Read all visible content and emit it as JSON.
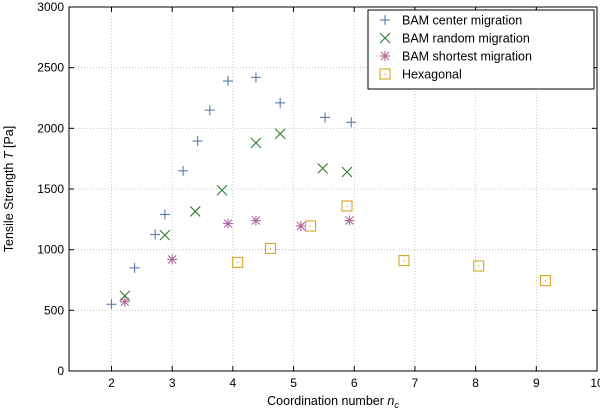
{
  "chart_data": {
    "type": "scatter",
    "title": "",
    "xlabel": "Coordination number",
    "xlabel_symbol": "n",
    "xlabel_subscript": "c",
    "ylabel": "Tensile Strength",
    "ylabel_symbol": "T",
    "ylabel_unit": "[Pa]",
    "xlim": [
      1.3,
      10
    ],
    "ylim": [
      0,
      3000
    ],
    "xticks": [
      2,
      3,
      4,
      5,
      6,
      7,
      8,
      9,
      10
    ],
    "yticks": [
      0,
      500,
      1000,
      1500,
      2000,
      2500,
      3000
    ],
    "grid": true,
    "legend_position": "top-right",
    "series": [
      {
        "name": "BAM center migration",
        "marker": "plus",
        "color": "#5a78b0",
        "points": [
          [
            2.0,
            550
          ],
          [
            2.38,
            850
          ],
          [
            2.72,
            1125
          ],
          [
            2.88,
            1290
          ],
          [
            3.18,
            1650
          ],
          [
            3.42,
            1895
          ],
          [
            3.62,
            2150
          ],
          [
            3.92,
            2390
          ],
          [
            4.38,
            2420
          ],
          [
            4.78,
            2210
          ],
          [
            5.52,
            2090
          ],
          [
            5.95,
            2050
          ]
        ]
      },
      {
        "name": "BAM random migration",
        "marker": "cross",
        "color": "#2e7d32",
        "points": [
          [
            2.22,
            620
          ],
          [
            2.88,
            1120
          ],
          [
            3.38,
            1315
          ],
          [
            3.82,
            1490
          ],
          [
            4.38,
            1880
          ],
          [
            4.78,
            1955
          ],
          [
            5.48,
            1670
          ],
          [
            5.88,
            1640
          ]
        ]
      },
      {
        "name": "BAM shortest migration",
        "marker": "asterisk",
        "color": "#b0669a",
        "points": [
          [
            2.22,
            570
          ],
          [
            3.0,
            920
          ],
          [
            3.92,
            1215
          ],
          [
            4.38,
            1240
          ],
          [
            5.12,
            1195
          ],
          [
            5.92,
            1240
          ]
        ]
      },
      {
        "name": "Hexagonal",
        "marker": "square",
        "color": "#d9a520",
        "points": [
          [
            4.08,
            895
          ],
          [
            4.62,
            1010
          ],
          [
            5.28,
            1195
          ],
          [
            5.88,
            1360
          ],
          [
            6.82,
            910
          ],
          [
            8.05,
            865
          ],
          [
            9.15,
            745
          ]
        ]
      }
    ]
  }
}
